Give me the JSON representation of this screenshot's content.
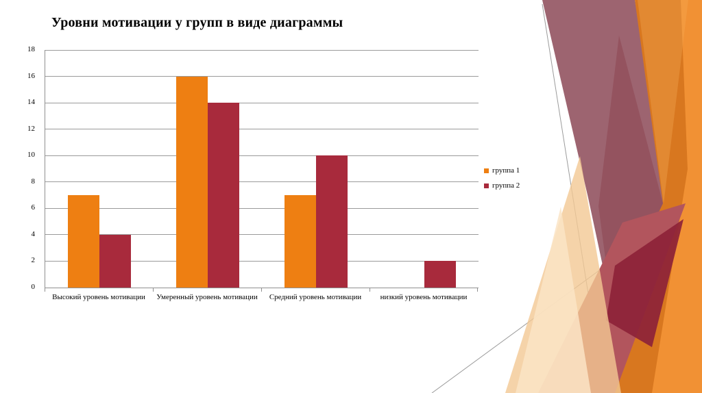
{
  "slide": {
    "title": "Уровни мотивации у групп в виде диаграммы"
  },
  "chart_data": {
    "type": "bar",
    "title": "Уровни мотивации у групп в виде диаграммы",
    "categories": [
      "Высокий уровень мотивации",
      "Умеренный уровень мотивации",
      "Средний уровень мотивации",
      "низкий уровень мотивации"
    ],
    "series": [
      {
        "name": "группа 1",
        "color": "#EE7F12",
        "values": [
          7,
          16,
          7,
          0
        ]
      },
      {
        "name": "группа 2",
        "color": "#A82A3C",
        "values": [
          4,
          14,
          10,
          2
        ]
      }
    ],
    "xlabel": "",
    "ylabel": "",
    "ylim": [
      0,
      18
    ],
    "yticks": [
      0,
      2,
      4,
      6,
      8,
      10,
      12,
      14,
      16,
      18
    ],
    "grid": "horizontal",
    "legend_position": "right"
  },
  "theme": {
    "background": "#FFFFFF",
    "grid_color": "#9A9A9A",
    "axis_color": "#8F8F8F",
    "text_color": "#000000",
    "decoration_palette": [
      "#D8771F",
      "#F19134",
      "#9D6470",
      "#93525E",
      "#B2555D",
      "#8D2338",
      "#F3C893",
      "#FAE4C6"
    ]
  }
}
